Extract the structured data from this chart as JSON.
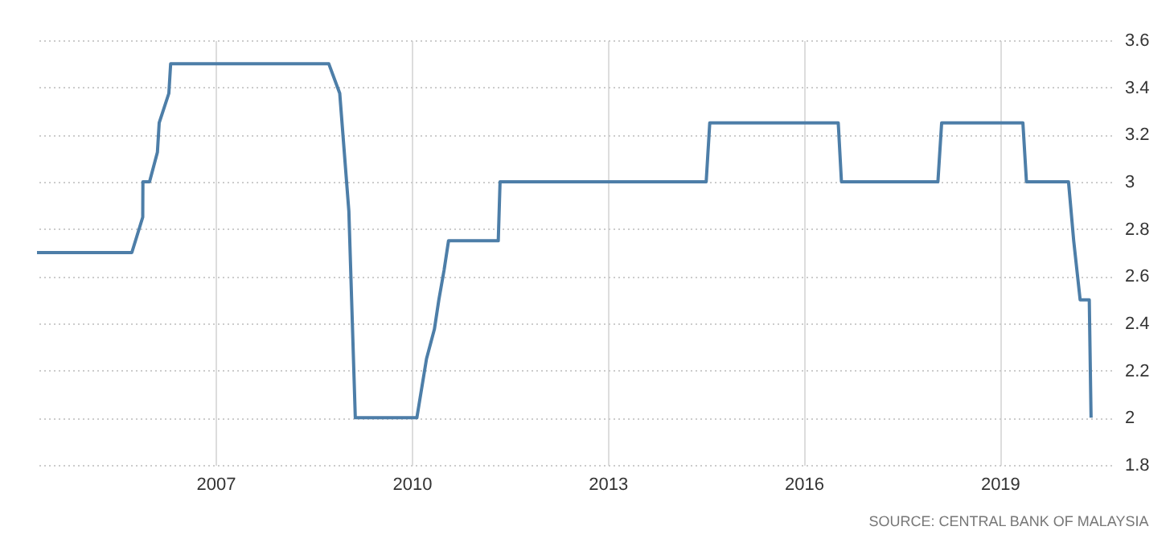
{
  "chart_data": {
    "type": "line",
    "color": "#4d7ea8",
    "x": [
      "2004-04-08",
      "2005-09-20",
      "2005-11-20",
      "2005-11-21",
      "2005-12-28",
      "2006-02-10",
      "2006-02-20",
      "2006-04-15",
      "2006-04-25",
      "2008-09-25",
      "2008-11-25",
      "2009-01-15",
      "2009-02-20",
      "2010-01-30",
      "2010-03-25",
      "2010-05-08",
      "2010-06-02",
      "2010-07-01",
      "2010-07-26",
      "2011-04-30",
      "2011-05-10",
      "2014-07-05",
      "2014-07-25",
      "2016-07-12",
      "2016-07-30",
      "2018-01-20",
      "2018-02-10",
      "2019-05-10",
      "2019-05-30",
      "2020-01-20",
      "2020-02-18",
      "2020-03-25",
      "2020-05-15",
      "2020-05-25"
    ],
    "values": [
      2.7,
      2.7,
      2.85,
      3.0,
      3.0,
      3.125,
      3.25,
      3.375,
      3.5,
      3.5,
      3.375,
      2.875,
      2.0,
      2.0,
      2.25,
      2.375,
      2.5,
      2.625,
      2.75,
      2.75,
      3.0,
      3.0,
      3.25,
      3.25,
      3.0,
      3.0,
      3.25,
      3.25,
      3.0,
      3.0,
      2.75,
      2.5,
      2.5,
      2.0
    ],
    "xlim": [
      "2004-04-08",
      "2020-09-15"
    ],
    "xticks": [
      "2007",
      "2010",
      "2013",
      "2016",
      "2019"
    ],
    "ylim": [
      1.8,
      3.6
    ],
    "yticks": [
      1.8,
      2,
      2.2,
      2.4,
      2.6,
      2.8,
      3,
      3.2,
      3.4,
      3.6
    ],
    "grid": true,
    "annotations": [
      "SOURCE: CENTRAL BANK OF MALAYSIA"
    ]
  }
}
